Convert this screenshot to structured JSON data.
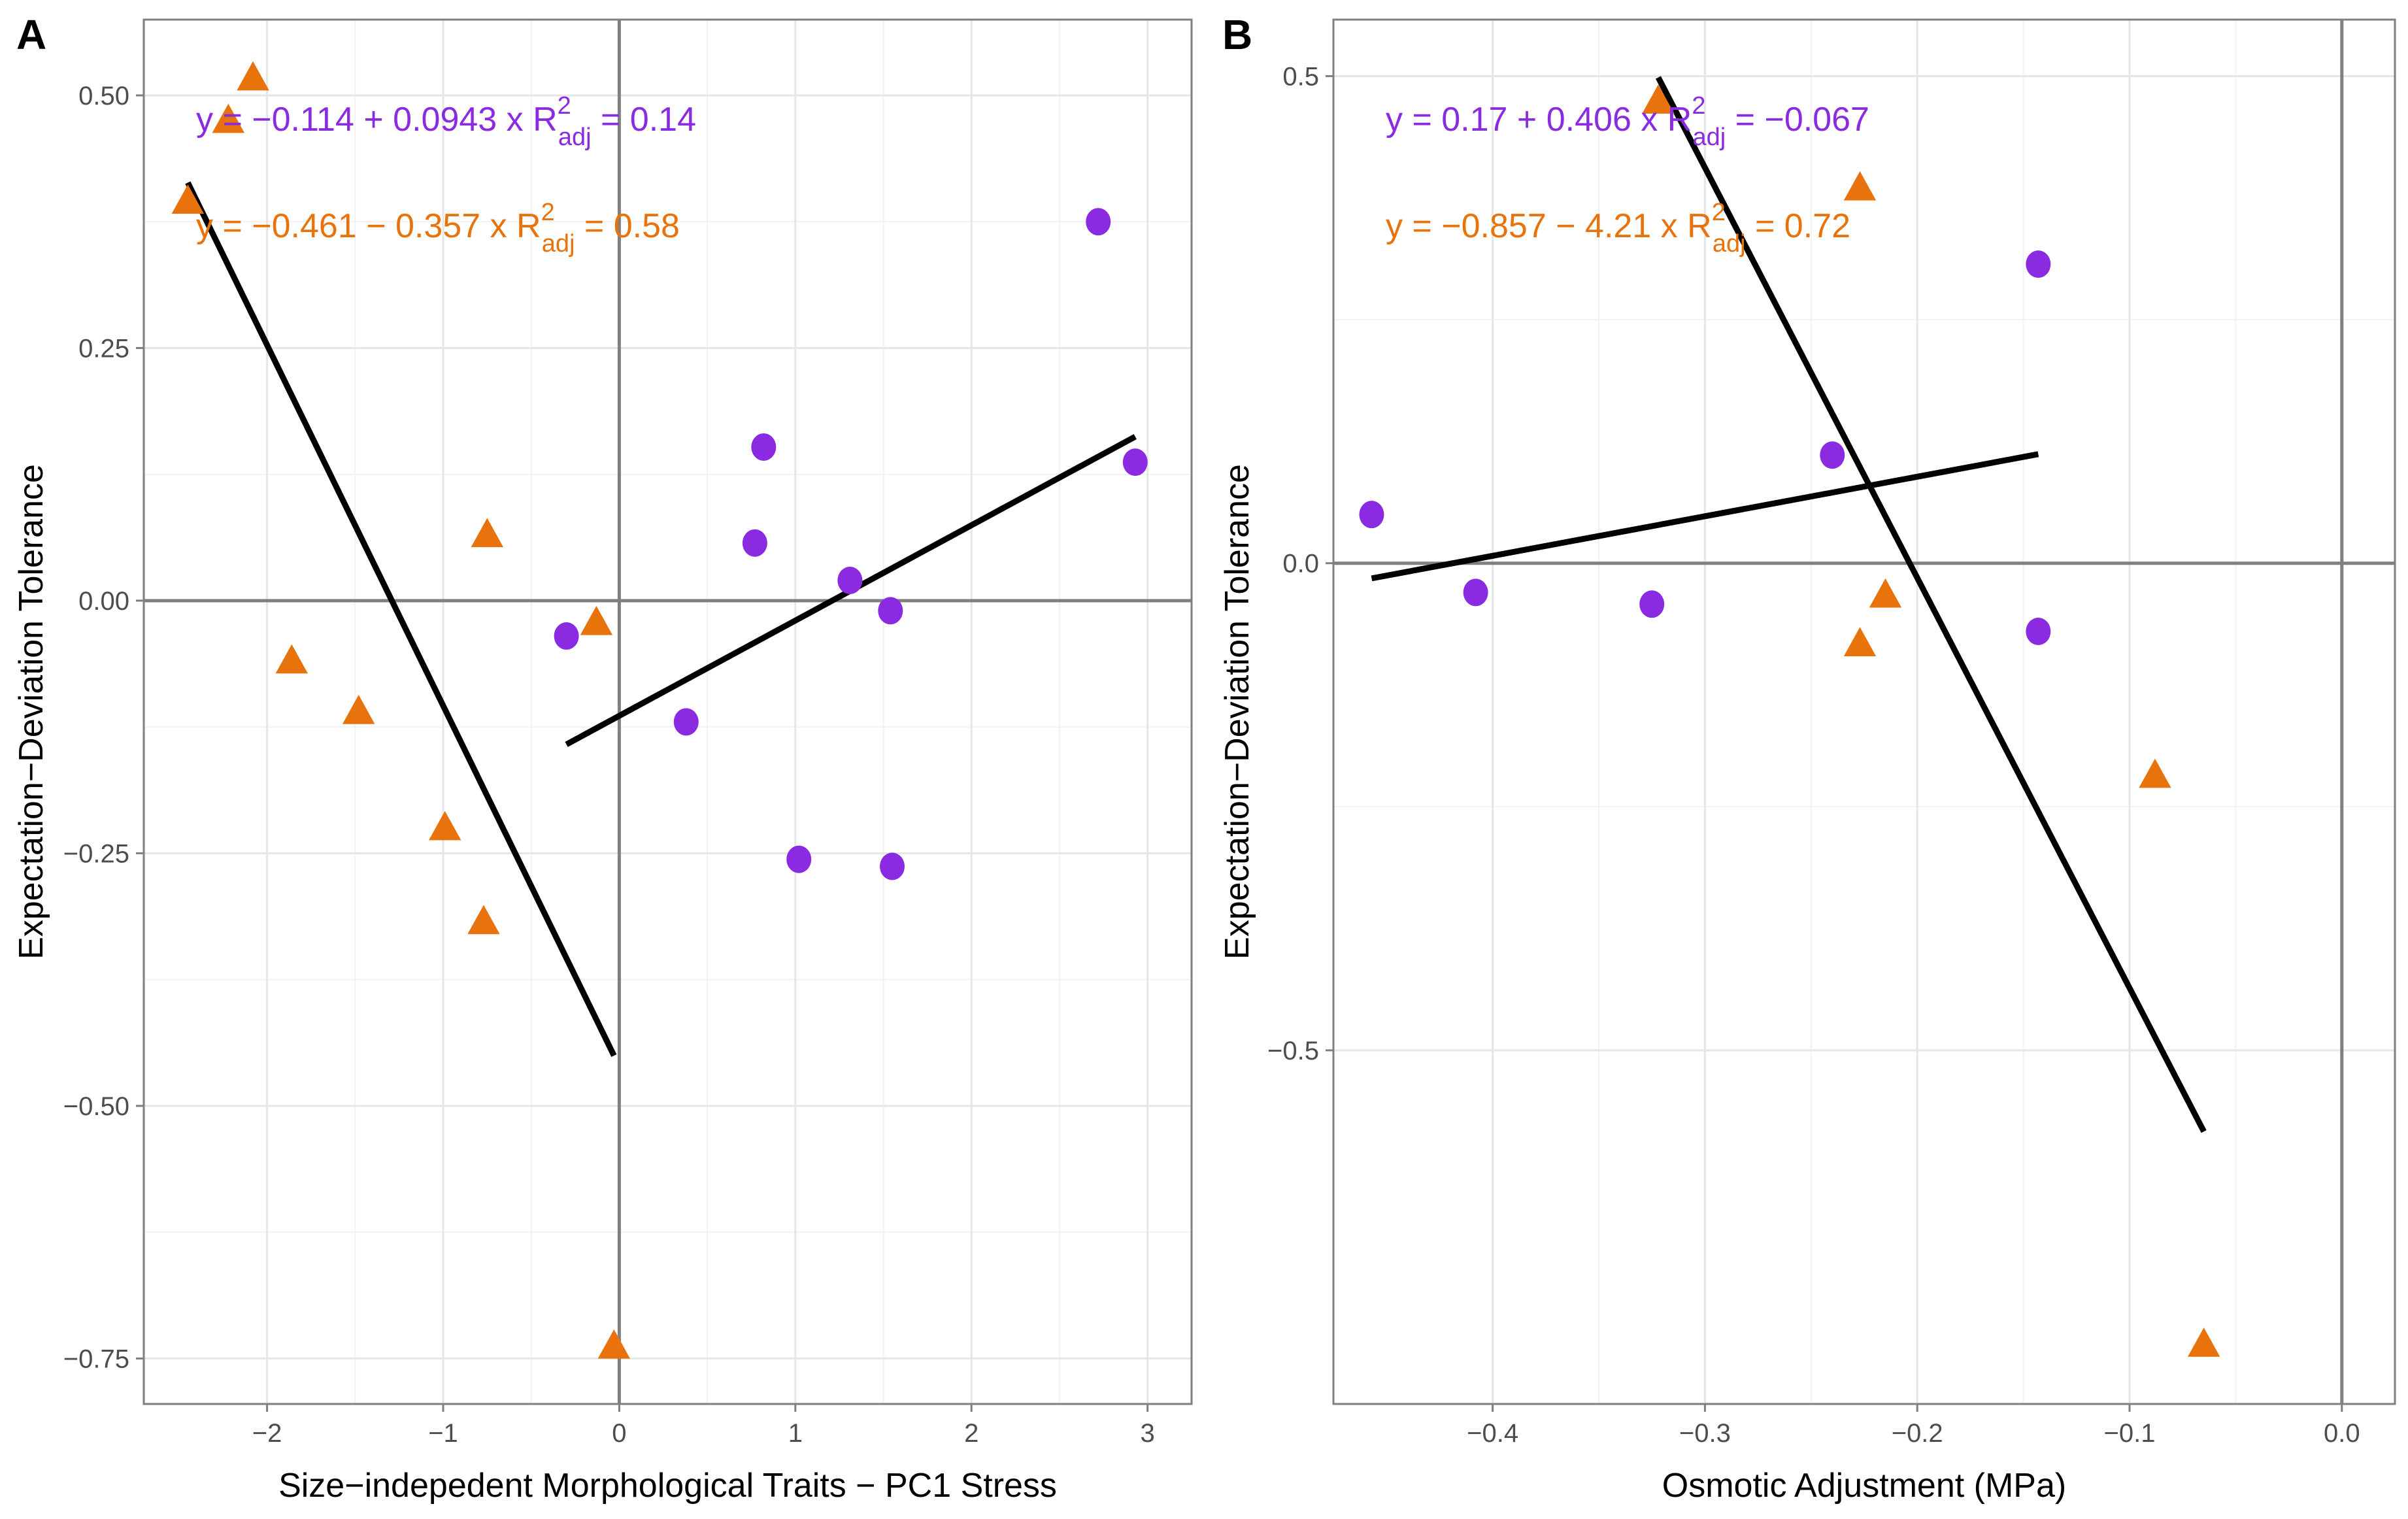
{
  "colors": {
    "purple": "#8a2be2",
    "orange": "#e8730c",
    "fit": "#000000"
  },
  "chart_data": [
    {
      "type": "scatter",
      "panel": "A",
      "xlabel": "Size−indepedent Morphological Traits − PC1 Stress",
      "ylabel": "Expectation−Deviation Tolerance",
      "xlim": [
        -2.7,
        3.25
      ],
      "ylim": [
        -0.795,
        0.575
      ],
      "xticks": [
        -2,
        -1,
        0,
        1,
        2,
        3
      ],
      "xtick_labels": [
        "−2",
        "−1",
        "0",
        "1",
        "2",
        "3"
      ],
      "yticks": [
        0.5,
        0.25,
        0.0,
        -0.25,
        -0.5,
        -0.75
      ],
      "ytick_labels": [
        "0.50",
        "0.25",
        "0.00",
        "−0.25",
        "−0.50",
        "−0.75"
      ],
      "grid": true,
      "series": [
        {
          "name": "purple",
          "marker": "circle",
          "color": "#8a2be2",
          "x": [
            -0.3,
            0.38,
            0.77,
            0.82,
            1.02,
            1.31,
            1.54,
            1.55,
            2.72,
            2.93
          ],
          "y": [
            -0.035,
            -0.12,
            0.057,
            0.152,
            -0.256,
            0.02,
            -0.01,
            -0.263,
            0.375,
            0.137
          ],
          "fit": {
            "intercept": -0.114,
            "slope": 0.0943,
            "x_range": [
              -0.3,
              2.93
            ]
          }
        },
        {
          "name": "orange",
          "marker": "triangle",
          "color": "#e8730c",
          "x": [
            -2.45,
            -2.22,
            -2.08,
            -1.86,
            -1.48,
            -0.99,
            -0.77,
            -0.75,
            -0.13,
            -0.03
          ],
          "y": [
            0.395,
            0.475,
            0.517,
            -0.06,
            -0.11,
            -0.225,
            -0.318,
            0.065,
            -0.022,
            -0.738
          ],
          "fit": {
            "intercept": -0.461,
            "slope": -0.357,
            "x_range": [
              -2.45,
              -0.03
            ]
          }
        }
      ],
      "equations": [
        {
          "color": "#8a2be2",
          "main": "y = −0.114 + 0.0943 x",
          "r2_label": "R",
          "r2_sup": "2",
          "r2_sub": "adj",
          "r2_value": " = 0.14"
        },
        {
          "color": "#e8730c",
          "main": "y = −0.461 − 0.357 x",
          "r2_label": "R",
          "r2_sup": "2",
          "r2_sub": "adj",
          "r2_value": " = 0.58"
        }
      ]
    },
    {
      "type": "scatter",
      "panel": "B",
      "xlabel": "Osmotic Adjustment (MPa)",
      "ylabel": "Expectation−Deviation Tolerance",
      "xlim": [
        -0.475,
        0.025
      ],
      "ylim": [
        -0.863,
        0.558
      ],
      "xticks": [
        -0.4,
        -0.3,
        -0.2,
        -0.1,
        0.0
      ],
      "xtick_labels": [
        "−0.4",
        "−0.3",
        "−0.2",
        "−0.1",
        "0.0"
      ],
      "yticks": [
        0.5,
        0.0,
        -0.5
      ],
      "ytick_labels": [
        "0.5",
        "0.0",
        "−0.5"
      ],
      "grid": true,
      "series": [
        {
          "name": "purple",
          "marker": "circle",
          "color": "#8a2be2",
          "x": [
            -0.457,
            -0.408,
            -0.325,
            -0.24,
            -0.143,
            -0.143
          ],
          "y": [
            0.05,
            -0.03,
            -0.042,
            0.111,
            0.307,
            -0.07
          ],
          "fit": {
            "intercept": 0.17,
            "slope": 0.406,
            "x_range": [
              -0.457,
              -0.143
            ]
          }
        },
        {
          "name": "orange",
          "marker": "triangle",
          "color": "#e8730c",
          "x": [
            -0.322,
            -0.227,
            -0.215,
            -0.227,
            -0.088,
            -0.065
          ],
          "y": [
            0.474,
            0.385,
            -0.033,
            -0.083,
            -0.218,
            -0.802
          ],
          "fit": {
            "intercept": -0.857,
            "slope": -4.21,
            "x_range": [
              -0.322,
              -0.065
            ]
          }
        }
      ],
      "equations": [
        {
          "color": "#8a2be2",
          "main": "y = 0.17 + 0.406 x",
          "r2_label": "R",
          "r2_sup": "2",
          "r2_sub": "adj",
          "r2_value": " = −0.067"
        },
        {
          "color": "#e8730c",
          "main": "y = −0.857 − 4.21 x",
          "r2_label": "R",
          "r2_sup": "2",
          "r2_sub": "adj",
          "r2_value": " = 0.72"
        }
      ]
    }
  ]
}
